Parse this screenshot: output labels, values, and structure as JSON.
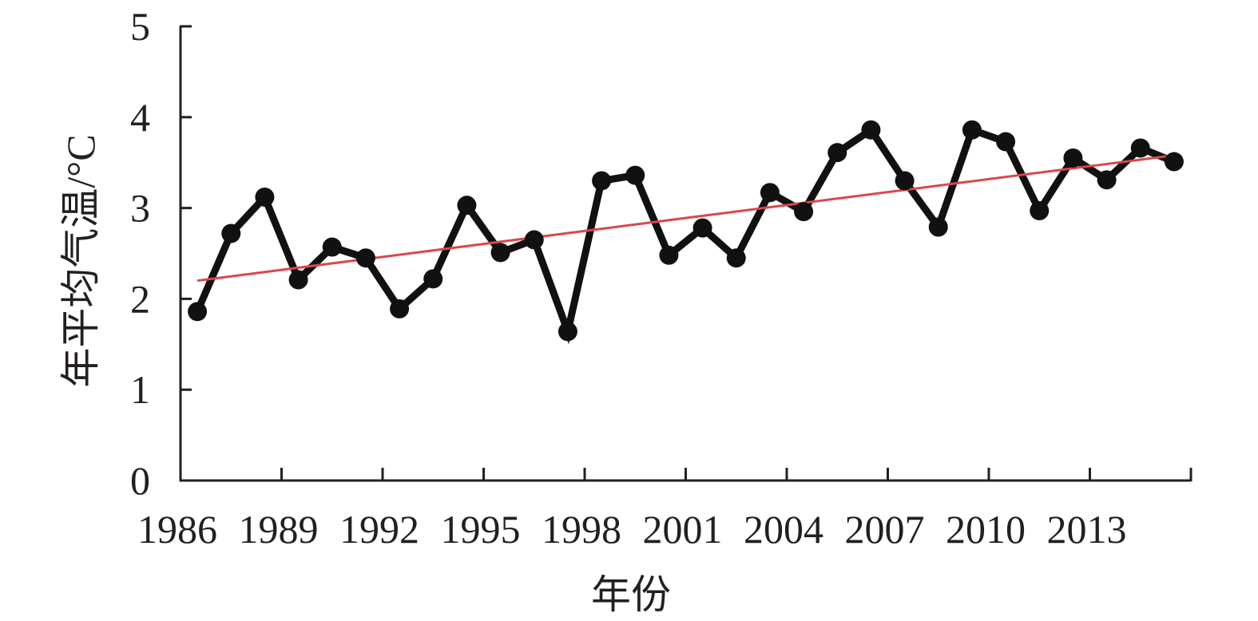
{
  "chart_data": {
    "type": "line",
    "xlabel": "年份",
    "ylabel": "年平均气温/°C",
    "xlim": [
      1986,
      2016
    ],
    "ylim": [
      0,
      5
    ],
    "x_ticks": [
      1986,
      1989,
      1992,
      1995,
      1998,
      2001,
      2004,
      2007,
      2010,
      2013
    ],
    "y_ticks": [
      0,
      1,
      2,
      3,
      4,
      5
    ],
    "grid": false,
    "legend": "none",
    "series": [
      {
        "kind": "observed",
        "color": "#111111",
        "x": [
          1986.5,
          1987.5,
          1988.5,
          1989.5,
          1990.5,
          1991.5,
          1992.5,
          1993.5,
          1994.5,
          1995.5,
          1996.5,
          1997.5,
          1998.5,
          1999.5,
          2000.5,
          2001.5,
          2002.5,
          2003.5,
          2004.5,
          2005.5,
          2006.5,
          2007.5,
          2008.5,
          2009.5,
          2010.5,
          2011.5,
          2012.5,
          2013.5,
          2014.5,
          2015.5
        ],
        "values": [
          1.86,
          2.72,
          3.12,
          2.21,
          2.57,
          2.45,
          1.89,
          2.22,
          3.03,
          2.51,
          2.65,
          1.64,
          3.3,
          3.36,
          2.48,
          2.78,
          2.45,
          3.17,
          2.96,
          3.61,
          3.86,
          3.3,
          2.79,
          3.86,
          3.73,
          2.97,
          3.55,
          3.31,
          3.66,
          3.51
        ]
      },
      {
        "kind": "trend",
        "color": "#d9474f",
        "x": [
          1986.5,
          2015.5
        ],
        "values": [
          2.2,
          3.58
        ]
      }
    ]
  }
}
